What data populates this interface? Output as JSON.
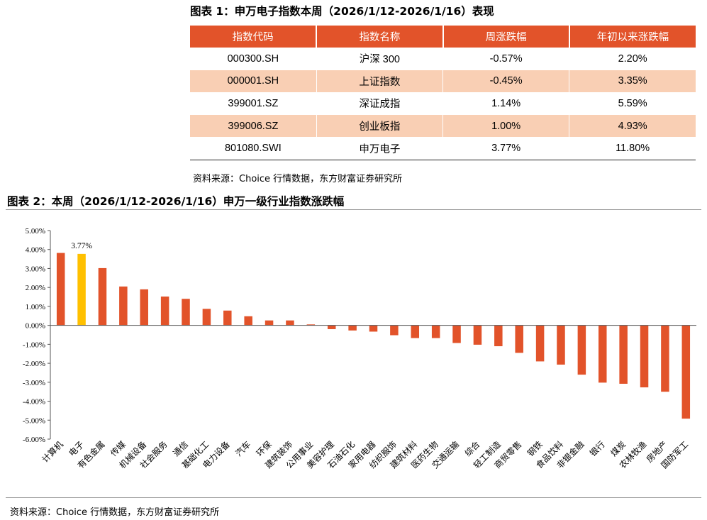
{
  "figure1": {
    "title": "图表 1：申万电子指数本周（2026/1/12-2026/1/16）表现",
    "headers": [
      "指数代码",
      "指数名称",
      "周涨跌幅",
      "年初以来涨跌幅"
    ],
    "rows": [
      [
        "000300.SH",
        "沪深 300",
        "-0.57%",
        "2.20%"
      ],
      [
        "000001.SH",
        "上证指数",
        "-0.45%",
        "3.35%"
      ],
      [
        "399001.SZ",
        "深证成指",
        "1.14%",
        "5.59%"
      ],
      [
        "399006.SZ",
        "创业板指",
        "1.00%",
        "4.93%"
      ],
      [
        "801080.SWI",
        "申万电子",
        "3.77%",
        "11.80%"
      ]
    ],
    "source": "资料来源：Choice 行情数据，东方财富证券研究所"
  },
  "figure2": {
    "title": "图表 2：本周（2026/1/12-2026/1/16）申万一级行业指数涨跌幅",
    "source": "资料来源：Choice 行情数据，东方财富证券研究所"
  },
  "colors": {
    "header": "#e2532a",
    "row_shade": "#f9cfb4",
    "bar": "#e2532a",
    "highlight": "#ffc000"
  },
  "chart_data": {
    "type": "bar",
    "title": "本周（2026/1/12-2026/1/16）申万一级行业指数涨跌幅",
    "ylim": [
      -6,
      5
    ],
    "yticks": [
      "5.00%",
      "4.00%",
      "3.00%",
      "2.00%",
      "1.00%",
      "0.00%",
      "-1.00%",
      "-2.00%",
      "-3.00%",
      "-4.00%",
      "-5.00%",
      "-6.00%"
    ],
    "categories": [
      "计算机",
      "电子",
      "有色金属",
      "传媒",
      "机械设备",
      "社会服务",
      "通信",
      "基础化工",
      "电力设备",
      "汽车",
      "环保",
      "建筑装饰",
      "公用事业",
      "美容护理",
      "石油石化",
      "家用电器",
      "纺织服饰",
      "建筑材料",
      "医药生物",
      "交通运输",
      "综合",
      "轻工制造",
      "商贸零售",
      "钢铁",
      "食品饮料",
      "非银金融",
      "银行",
      "煤炭",
      "农林牧渔",
      "房地产",
      "国防军工"
    ],
    "values": [
      3.82,
      3.77,
      3.02,
      2.05,
      1.9,
      1.52,
      1.4,
      0.87,
      0.78,
      0.48,
      0.26,
      0.26,
      0.05,
      -0.2,
      -0.27,
      -0.33,
      -0.52,
      -0.67,
      -0.67,
      -0.93,
      -1.02,
      -1.1,
      -1.45,
      -1.9,
      -2.07,
      -2.6,
      -3.02,
      -3.08,
      -3.27,
      -3.5,
      -4.92
    ],
    "highlight_category": "电子",
    "data_labels": [
      {
        "category": "电子",
        "text": "3.77%"
      }
    ]
  }
}
